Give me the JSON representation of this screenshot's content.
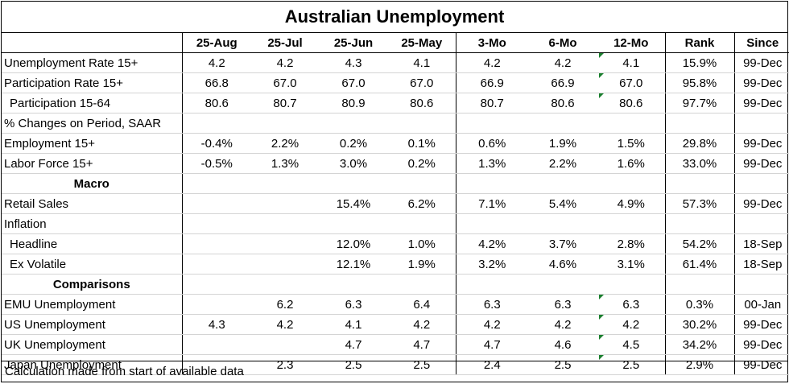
{
  "title": "Australian Unemployment",
  "headers": [
    "",
    "25-Aug",
    "25-Jul",
    "25-Jun",
    "25-May",
    "3-Mo",
    "6-Mo",
    "12-Mo",
    "Rank",
    "Since"
  ],
  "rows": [
    {
      "label": "Unemployment Rate 15+",
      "indent": false,
      "section": false,
      "cells": [
        "4.2",
        "4.2",
        "4.3",
        "4.1",
        "4.2",
        "4.2",
        "4.1",
        "15.9%",
        "99-Dec"
      ],
      "flag": true
    },
    {
      "label": "Participation Rate 15+",
      "indent": false,
      "section": false,
      "cells": [
        "66.8",
        "67.0",
        "67.0",
        "67.0",
        "66.9",
        "66.9",
        "67.0",
        "95.8%",
        "99-Dec"
      ],
      "flag": true
    },
    {
      "label": "Participation 15-64",
      "indent": true,
      "section": false,
      "cells": [
        "80.6",
        "80.7",
        "80.9",
        "80.6",
        "80.7",
        "80.6",
        "80.6",
        "97.7%",
        "99-Dec"
      ],
      "flag": true
    },
    {
      "label": "% Changes on Period, SAAR",
      "indent": false,
      "section": false,
      "cells": [
        "",
        "",
        "",
        "",
        "",
        "",
        "",
        "",
        ""
      ],
      "flag": false
    },
    {
      "label": "Employment 15+",
      "indent": false,
      "section": false,
      "cells": [
        "-0.4%",
        "2.2%",
        "0.2%",
        "0.1%",
        "0.6%",
        "1.9%",
        "1.5%",
        "29.8%",
        "99-Dec"
      ],
      "flag": false
    },
    {
      "label": "Labor Force 15+",
      "indent": false,
      "section": false,
      "cells": [
        "-0.5%",
        "1.3%",
        "3.0%",
        "0.2%",
        "1.3%",
        "2.2%",
        "1.6%",
        "33.0%",
        "99-Dec"
      ],
      "flag": false
    },
    {
      "label": "Macro",
      "indent": false,
      "section": true,
      "cells": [
        "",
        "",
        "",
        "",
        "",
        "",
        "",
        "",
        ""
      ],
      "flag": false
    },
    {
      "label": "Retail Sales",
      "indent": false,
      "section": false,
      "cells": [
        "",
        "",
        "15.4%",
        "6.2%",
        "7.1%",
        "5.4%",
        "4.9%",
        "57.3%",
        "99-Dec"
      ],
      "flag": false
    },
    {
      "label": "Inflation",
      "indent": false,
      "section": false,
      "cells": [
        "",
        "",
        "",
        "",
        "",
        "",
        "",
        "",
        ""
      ],
      "flag": false
    },
    {
      "label": "Headline",
      "indent": true,
      "section": false,
      "cells": [
        "",
        "",
        "12.0%",
        "1.0%",
        "4.2%",
        "3.7%",
        "2.8%",
        "54.2%",
        "18-Sep"
      ],
      "flag": false
    },
    {
      "label": "Ex Volatile",
      "indent": true,
      "section": false,
      "cells": [
        "",
        "",
        "12.1%",
        "1.9%",
        "3.2%",
        "4.6%",
        "3.1%",
        "61.4%",
        "18-Sep"
      ],
      "flag": false
    },
    {
      "label": "Comparisons",
      "indent": false,
      "section": true,
      "cells": [
        "",
        "",
        "",
        "",
        "",
        "",
        "",
        "",
        ""
      ],
      "flag": false
    },
    {
      "label": "EMU Unemployment",
      "indent": false,
      "section": false,
      "cells": [
        "",
        "6.2",
        "6.3",
        "6.4",
        "6.3",
        "6.3",
        "6.3",
        "0.3%",
        "00-Jan"
      ],
      "flag": true
    },
    {
      "label": "US Unemployment",
      "indent": false,
      "section": false,
      "cells": [
        "4.3",
        "4.2",
        "4.1",
        "4.2",
        "4.2",
        "4.2",
        "4.2",
        "30.2%",
        "99-Dec"
      ],
      "flag": true
    },
    {
      "label": "UK Unemployment",
      "indent": false,
      "section": false,
      "cells": [
        "",
        "",
        "4.7",
        "4.7",
        "4.7",
        "4.6",
        "4.5",
        "34.2%",
        "99-Dec"
      ],
      "flag": true
    },
    {
      "label": "Japan Unemployment",
      "indent": false,
      "section": false,
      "cells": [
        "",
        "2.3",
        "2.5",
        "2.5",
        "2.4",
        "2.5",
        "2.5",
        "2.9%",
        "99-Dec"
      ],
      "flag": true
    }
  ],
  "footer": "Calculation made from start of available data",
  "colors": {
    "border": "#000000",
    "gridline": "#d4d4d4",
    "flag": "#1a7f2e"
  }
}
